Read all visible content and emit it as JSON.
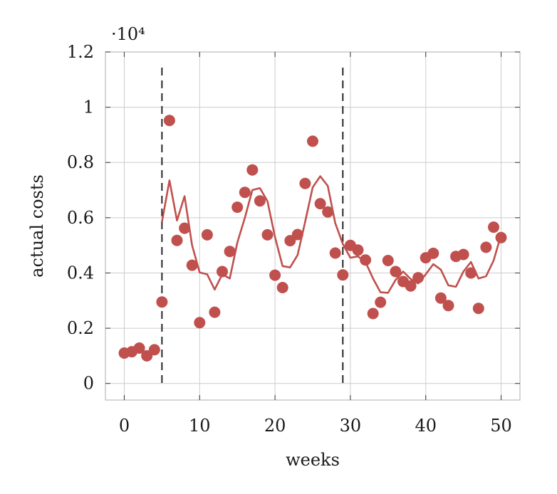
{
  "chart_data": {
    "type": "scatter",
    "xlabel": "weeks",
    "ylabel": "actual costs",
    "y_multiplier_label": "·10⁴",
    "y_multiplier": 10000,
    "xlim": [
      -2.5,
      52.5
    ],
    "ylim": [
      -0.06,
      1.2
    ],
    "x_ticks": [
      0,
      10,
      20,
      30,
      40,
      50
    ],
    "x_tick_labels": [
      "0",
      "10",
      "20",
      "30",
      "40",
      "50"
    ],
    "y_ticks": [
      0,
      0.2,
      0.4,
      0.6,
      0.8,
      1.0,
      1.2
    ],
    "y_tick_labels": [
      "0",
      "0.2",
      "0.4",
      "0.6",
      "0.8",
      "1",
      "1.2"
    ],
    "grid": true,
    "vertical_markers": [
      5,
      29
    ],
    "colors": {
      "points": "#c0504d",
      "line": "#c0504d",
      "markers": "#111111",
      "grid": "#cccccc",
      "frame": "#bbbbbb"
    },
    "series": [
      {
        "kind": "points",
        "x": [
          0,
          1,
          2,
          3,
          4,
          5,
          6,
          7,
          8,
          9,
          10,
          11,
          12,
          13,
          14,
          15,
          16,
          17,
          18,
          19,
          20,
          21,
          22,
          23,
          24,
          25,
          26,
          27,
          28,
          29,
          30,
          31,
          32,
          33,
          34,
          35,
          36,
          37,
          38,
          39,
          40,
          41,
          42,
          43,
          44,
          45,
          46,
          47,
          48,
          49,
          50
        ],
        "y": [
          0.11,
          0.115,
          0.128,
          0.1,
          0.122,
          0.295,
          0.952,
          0.518,
          0.562,
          0.428,
          0.22,
          0.538,
          0.258,
          0.405,
          0.478,
          0.638,
          0.692,
          0.773,
          0.661,
          0.538,
          0.392,
          0.347,
          0.517,
          0.539,
          0.724,
          0.877,
          0.651,
          0.621,
          0.472,
          0.393,
          0.5,
          0.483,
          0.447,
          0.253,
          0.294,
          0.445,
          0.405,
          0.369,
          0.353,
          0.383,
          0.455,
          0.471,
          0.309,
          0.282,
          0.46,
          0.467,
          0.4,
          0.272,
          0.493,
          0.566,
          0.528
        ]
      },
      {
        "kind": "line",
        "x": [
          5,
          6,
          7,
          8,
          9,
          10,
          11,
          12,
          13,
          14,
          15,
          16,
          17,
          18,
          19,
          20,
          21,
          22,
          23,
          24,
          25,
          26,
          27,
          28,
          29,
          30,
          31,
          32,
          33,
          34,
          35,
          36,
          37,
          38,
          39,
          40,
          41,
          42,
          43,
          44,
          45,
          46,
          47,
          48,
          49,
          50
        ],
        "y": [
          0.585,
          0.735,
          0.59,
          0.678,
          0.5,
          0.402,
          0.395,
          0.34,
          0.395,
          0.38,
          0.51,
          0.6,
          0.7,
          0.707,
          0.66,
          0.53,
          0.425,
          0.42,
          0.465,
          0.585,
          0.71,
          0.75,
          0.715,
          0.58,
          0.505,
          0.455,
          0.46,
          0.44,
          0.38,
          0.33,
          0.328,
          0.375,
          0.405,
          0.378,
          0.362,
          0.395,
          0.432,
          0.412,
          0.355,
          0.35,
          0.405,
          0.44,
          0.38,
          0.388,
          0.445,
          0.538
        ]
      }
    ]
  }
}
